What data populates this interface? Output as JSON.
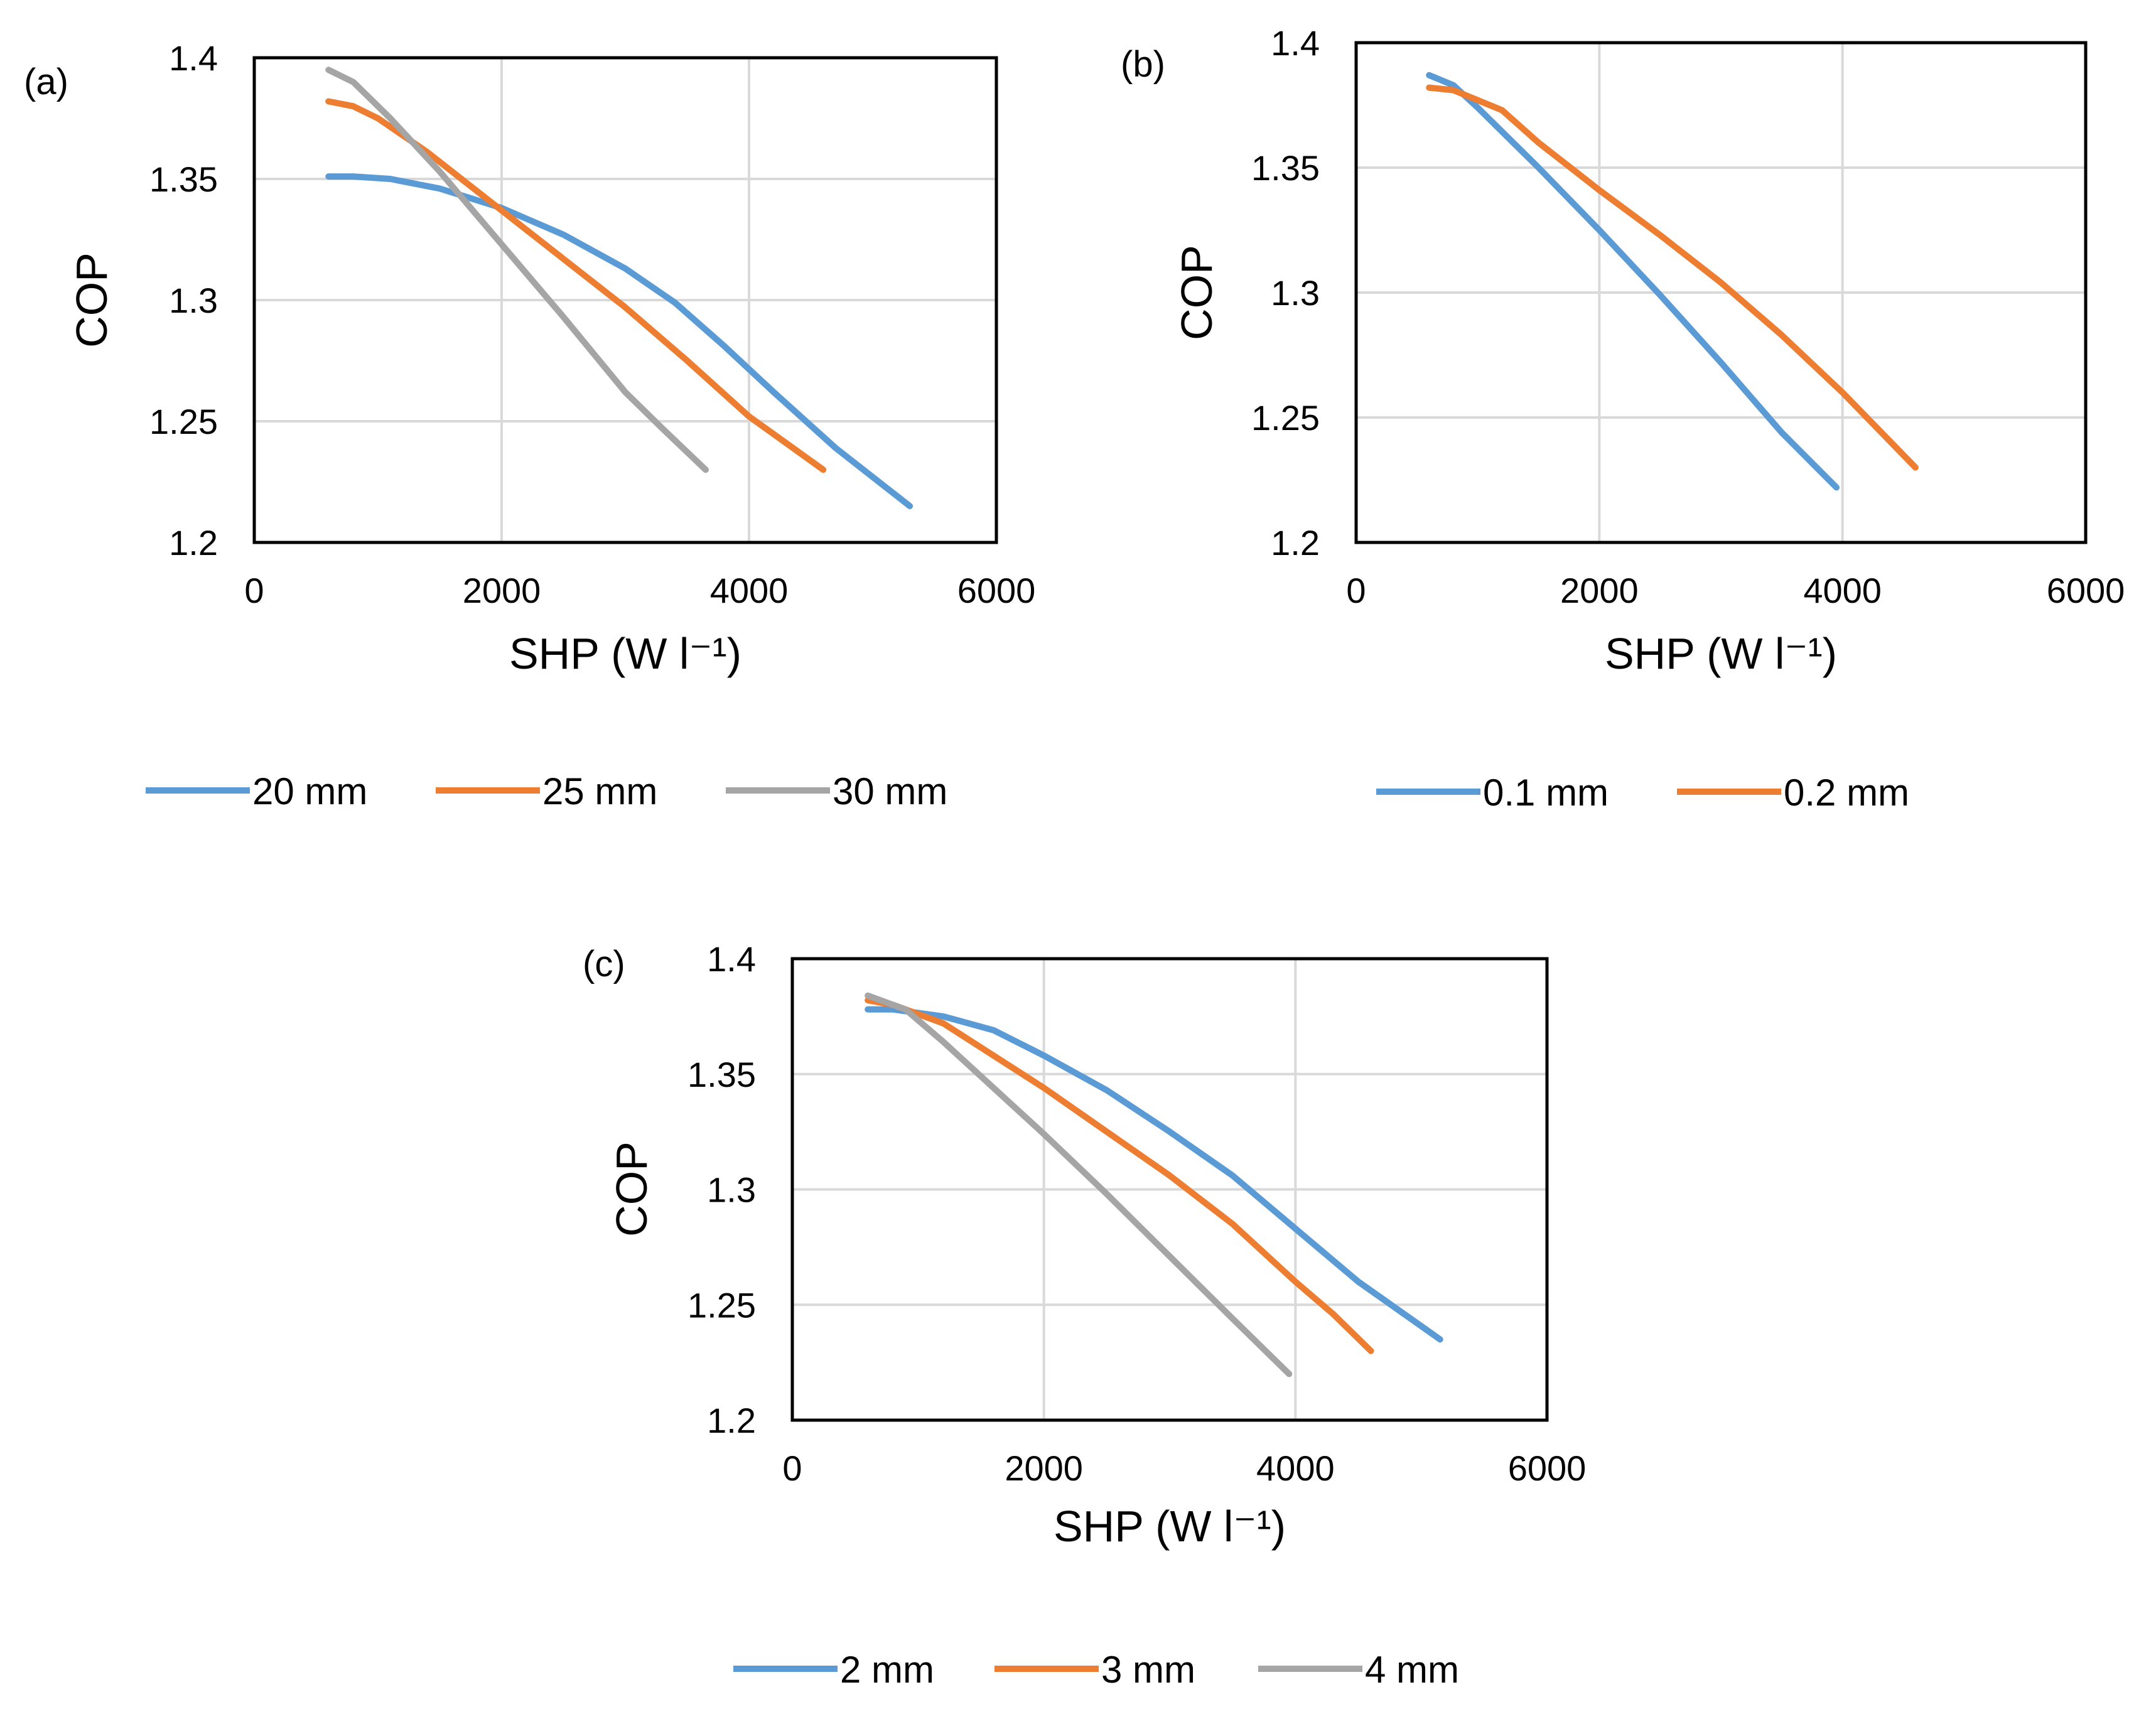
{
  "figure": {
    "legend_gap_label": "",
    "panels_count": 3
  },
  "chart_data": [
    {
      "type": "line",
      "panel_label": "(a)",
      "xlabel": "SHP (W l⁻¹)",
      "ylabel": "COP",
      "xlim": [
        0,
        6000
      ],
      "ylim": [
        1.2,
        1.4
      ],
      "xticks": [
        "0",
        "2000",
        "4000",
        "6000"
      ],
      "yticks": [
        "1.2",
        "1.25",
        "1.3",
        "1.35",
        "1.4"
      ],
      "grid": true,
      "legend_position": "bottom",
      "series": [
        {
          "name": "20 mm",
          "color": "#5b9bd5",
          "x": [
            600,
            800,
            1100,
            1500,
            2000,
            2500,
            3000,
            3400,
            3800,
            4200,
            4700,
            5300
          ],
          "y": [
            1.351,
            1.351,
            1.35,
            1.346,
            1.338,
            1.327,
            1.313,
            1.299,
            1.281,
            1.262,
            1.239,
            1.215
          ]
        },
        {
          "name": "25 mm",
          "color": "#ed7d31",
          "x": [
            600,
            800,
            1000,
            1400,
            2000,
            2500,
            3000,
            3500,
            4000,
            4300,
            4600
          ],
          "y": [
            1.382,
            1.38,
            1.375,
            1.361,
            1.337,
            1.317,
            1.297,
            1.275,
            1.252,
            1.241,
            1.23
          ]
        },
        {
          "name": "30 mm",
          "color": "#a5a5a5",
          "x": [
            600,
            800,
            1100,
            1500,
            2000,
            2500,
            3000,
            3300,
            3650
          ],
          "y": [
            1.395,
            1.39,
            1.375,
            1.353,
            1.323,
            1.293,
            1.262,
            1.247,
            1.23
          ]
        }
      ]
    },
    {
      "type": "line",
      "panel_label": "(b)",
      "xlabel": "SHP (W l⁻¹)",
      "ylabel": "COP",
      "xlim": [
        0,
        6000
      ],
      "ylim": [
        1.2,
        1.4
      ],
      "xticks": [
        "0",
        "2000",
        "4000",
        "6000"
      ],
      "yticks": [
        "1.2",
        "1.25",
        "1.3",
        "1.35",
        "1.4"
      ],
      "grid": true,
      "legend_position": "bottom",
      "series": [
        {
          "name": "0.1 mm",
          "color": "#5b9bd5",
          "x": [
            600,
            800,
            1000,
            1500,
            2000,
            2500,
            3000,
            3500,
            3950
          ],
          "y": [
            1.387,
            1.383,
            1.374,
            1.35,
            1.325,
            1.299,
            1.272,
            1.244,
            1.222
          ]
        },
        {
          "name": "0.2 mm",
          "color": "#ed7d31",
          "x": [
            600,
            800,
            1200,
            1500,
            2000,
            2500,
            3000,
            3500,
            4000,
            4300,
            4600
          ],
          "y": [
            1.382,
            1.381,
            1.373,
            1.36,
            1.341,
            1.323,
            1.304,
            1.283,
            1.26,
            1.245,
            1.23
          ]
        }
      ]
    },
    {
      "type": "line",
      "panel_label": "(c)",
      "xlabel": "SHP (W l⁻¹)",
      "ylabel": "COP",
      "xlim": [
        0,
        6000
      ],
      "ylim": [
        1.2,
        1.4
      ],
      "xticks": [
        "0",
        "2000",
        "4000",
        "6000"
      ],
      "yticks": [
        "1.2",
        "1.25",
        "1.3",
        "1.35",
        "1.4"
      ],
      "grid": true,
      "legend_position": "bottom",
      "series": [
        {
          "name": "2 mm",
          "color": "#5b9bd5",
          "x": [
            600,
            800,
            1200,
            1600,
            2000,
            2500,
            3000,
            3500,
            4000,
            4500,
            5150
          ],
          "y": [
            1.378,
            1.378,
            1.375,
            1.369,
            1.358,
            1.343,
            1.325,
            1.306,
            1.283,
            1.26,
            1.235
          ]
        },
        {
          "name": "3 mm",
          "color": "#ed7d31",
          "x": [
            600,
            800,
            1200,
            1600,
            2000,
            2500,
            3000,
            3500,
            4000,
            4300,
            4600
          ],
          "y": [
            1.382,
            1.38,
            1.372,
            1.358,
            1.344,
            1.325,
            1.306,
            1.285,
            1.26,
            1.246,
            1.23
          ]
        },
        {
          "name": "4 mm",
          "color": "#a5a5a5",
          "x": [
            600,
            900,
            1200,
            1600,
            2000,
            2500,
            3000,
            3500,
            3950
          ],
          "y": [
            1.384,
            1.378,
            1.364,
            1.344,
            1.324,
            1.298,
            1.271,
            1.244,
            1.22
          ]
        }
      ]
    }
  ]
}
